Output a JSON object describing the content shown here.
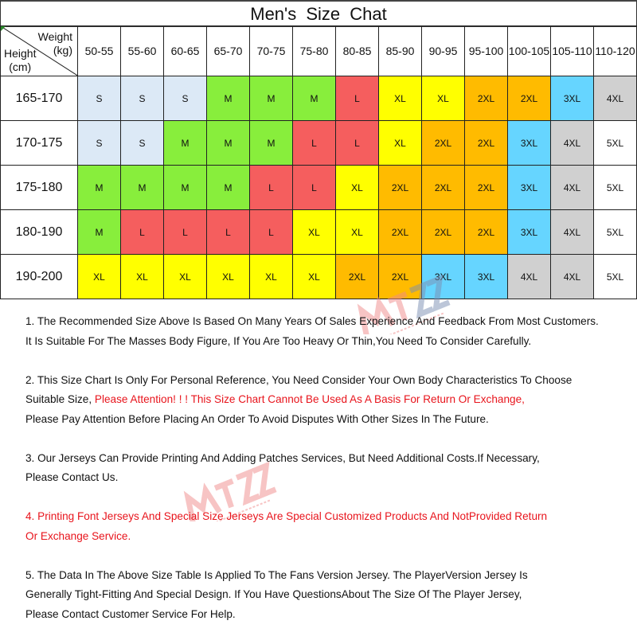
{
  "title": "Men's  Size  Chat",
  "corner": {
    "weight": "Weight",
    "weight_unit": "(kg)",
    "height": "Height",
    "height_unit": "(cm)"
  },
  "weights": [
    "50-55",
    "55-60",
    "60-65",
    "65-70",
    "70-75",
    "75-80",
    "80-85",
    "85-90",
    "90-95",
    "95-100",
    "100-105",
    "105-110",
    "110-120"
  ],
  "rows": [
    {
      "height": "165-170",
      "sizes": [
        "S",
        "S",
        "S",
        "M",
        "M",
        "M",
        "L",
        "XL",
        "XL",
        "2XL",
        "2XL",
        "3XL",
        "4XL"
      ]
    },
    {
      "height": "170-175",
      "sizes": [
        "S",
        "S",
        "M",
        "M",
        "M",
        "L",
        "L",
        "XL",
        "2XL",
        "2XL",
        "3XL",
        "4XL",
        "5XL"
      ]
    },
    {
      "height": "175-180",
      "sizes": [
        "M",
        "M",
        "M",
        "M",
        "L",
        "L",
        "XL",
        "2XL",
        "2XL",
        "2XL",
        "3XL",
        "4XL",
        "5XL"
      ]
    },
    {
      "height": "180-190",
      "sizes": [
        "M",
        "L",
        "L",
        "L",
        "L",
        "XL",
        "XL",
        "2XL",
        "2XL",
        "2XL",
        "3XL",
        "4XL",
        "5XL"
      ]
    },
    {
      "height": "190-200",
      "sizes": [
        "XL",
        "XL",
        "XL",
        "XL",
        "XL",
        "XL",
        "2XL",
        "2XL",
        "3XL",
        "3XL",
        "4XL",
        "4XL",
        "5XL"
      ]
    }
  ],
  "size_colors": {
    "S": "#dce9f6",
    "M": "#88ee3c",
    "L": "#f55e5e",
    "XL": "#ffff00",
    "2XL": "#ffbb00",
    "3XL": "#66d5ff",
    "4XL": "#d0d0d0",
    "5XL": "#ffffff"
  },
  "notes": {
    "n1_l1": "1. The Recommended Size Above Is Based On Many Years Of Sales Experience And Feedback From Most Customers.",
    "n1_l2": "It Is Suitable For The Masses Body Figure, If You Are Too Heavy Or Thin,You Need To Consider Carefully.",
    "n2_l1": "2. This Size Chart Is Only For Personal Reference, You Need Consider Your Own Body Characteristics To Choose",
    "n2_l2a": "Suitable Size, ",
    "n2_l2b": "Please Attention! ! !  This Size Chart Cannot Be Used As A Basis For Return Or Exchange,",
    "n2_l3": "Please Pay  Attention Before Placing An Order To Avoid Disputes With Other Sizes In The Future.",
    "n3_l1": "3. Our Jerseys Can Provide Printing And Adding Patches Services, But Need Additional Costs.If Necessary,",
    "n3_l2": "Please  Contact Us.",
    "n4_l1a": "4. ",
    "n4_l1b": "Printing Font Jerseys And Special Size Jerseys Are Special Customized Products And NotProvided Return",
    "n4_l2": "Or  Exchange Service.",
    "n5_l1": "5. The Data In The Above Size Table Is Applied To The Fans Version Jersey.  The PlayerVersion Jersey Is",
    "n5_l2": "Generally  Tight-Fitting And Special Design.  If You Have QuestionsAbout The Size Of The Player Jersey,",
    "n5_l3": "Please Contact  Customer Service For Help."
  },
  "watermark": {
    "logo": "MTZZ",
    "tagline": "HIGH-QUALITY JERSEYS"
  }
}
